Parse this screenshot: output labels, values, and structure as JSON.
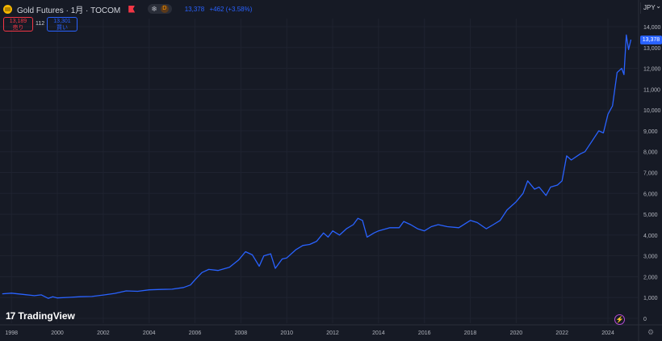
{
  "header": {
    "symbol_title": "Gold Futures · 1月 · TOCOM",
    "badge_d": "D",
    "price": "13,378",
    "change": "+462 (+3.58%)"
  },
  "trade": {
    "sell_price": "13,189",
    "sell_label": "売り",
    "spread": "112",
    "buy_price": "13,301",
    "buy_label": "買い"
  },
  "currency": "JPY",
  "last_price_tag": "13,378",
  "brand": {
    "logo": "17",
    "name": "TradingView"
  },
  "colors": {
    "background": "#161a25",
    "line": "#2962ff",
    "sell": "#f23645",
    "buy": "#2962ff",
    "grid": "#1f2330"
  },
  "icons": [
    "gold-symbol-icon",
    "flag-icon",
    "snowflake-icon",
    "bolt-icon",
    "gear-icon"
  ],
  "chart_data": {
    "type": "line",
    "title": "",
    "xlabel": "",
    "ylabel": "",
    "x_ticks": [
      "1998",
      "2000",
      "2002",
      "2004",
      "2006",
      "2008",
      "2010",
      "2012",
      "2014",
      "2016",
      "2018",
      "2020",
      "2022",
      "2024"
    ],
    "y_ticks": [
      "0",
      "1,000",
      "2,000",
      "3,000",
      "4,000",
      "5,000",
      "6,000",
      "7,000",
      "8,000",
      "9,000",
      "10,000",
      "11,000",
      "12,000",
      "13,000",
      "14,000"
    ],
    "ylim": [
      0,
      14000
    ],
    "xlim": [
      1997.5,
      2025.3
    ],
    "grid": true,
    "series": [
      {
        "color": "#2962ff",
        "points": [
          [
            1997.6,
            1180
          ],
          [
            1998.0,
            1210
          ],
          [
            1998.5,
            1150
          ],
          [
            1999.0,
            1090
          ],
          [
            1999.3,
            1130
          ],
          [
            1999.6,
            960
          ],
          [
            1999.8,
            1040
          ],
          [
            2000.0,
            980
          ],
          [
            2000.5,
            1010
          ],
          [
            2001.0,
            1040
          ],
          [
            2001.5,
            1050
          ],
          [
            2002.0,
            1120
          ],
          [
            2002.5,
            1200
          ],
          [
            2003.0,
            1320
          ],
          [
            2003.5,
            1300
          ],
          [
            2004.0,
            1370
          ],
          [
            2004.5,
            1390
          ],
          [
            2005.0,
            1400
          ],
          [
            2005.5,
            1480
          ],
          [
            2005.8,
            1600
          ],
          [
            2006.0,
            1850
          ],
          [
            2006.3,
            2200
          ],
          [
            2006.6,
            2350
          ],
          [
            2007.0,
            2300
          ],
          [
            2007.5,
            2450
          ],
          [
            2007.9,
            2800
          ],
          [
            2008.2,
            3200
          ],
          [
            2008.5,
            3050
          ],
          [
            2008.8,
            2500
          ],
          [
            2009.0,
            3000
          ],
          [
            2009.3,
            3100
          ],
          [
            2009.5,
            2400
          ],
          [
            2009.8,
            2850
          ],
          [
            2010.0,
            2900
          ],
          [
            2010.4,
            3300
          ],
          [
            2010.7,
            3500
          ],
          [
            2011.0,
            3550
          ],
          [
            2011.3,
            3700
          ],
          [
            2011.6,
            4100
          ],
          [
            2011.8,
            3900
          ],
          [
            2012.0,
            4200
          ],
          [
            2012.3,
            4000
          ],
          [
            2012.6,
            4300
          ],
          [
            2012.9,
            4500
          ],
          [
            2013.1,
            4800
          ],
          [
            2013.3,
            4700
          ],
          [
            2013.5,
            3900
          ],
          [
            2013.8,
            4100
          ],
          [
            2014.0,
            4200
          ],
          [
            2014.5,
            4350
          ],
          [
            2014.9,
            4350
          ],
          [
            2015.1,
            4650
          ],
          [
            2015.4,
            4500
          ],
          [
            2015.7,
            4300
          ],
          [
            2016.0,
            4200
          ],
          [
            2016.3,
            4400
          ],
          [
            2016.6,
            4500
          ],
          [
            2017.0,
            4400
          ],
          [
            2017.5,
            4350
          ],
          [
            2018.0,
            4700
          ],
          [
            2018.3,
            4600
          ],
          [
            2018.7,
            4300
          ],
          [
            2019.0,
            4500
          ],
          [
            2019.3,
            4700
          ],
          [
            2019.6,
            5200
          ],
          [
            2020.0,
            5600
          ],
          [
            2020.3,
            6000
          ],
          [
            2020.5,
            6600
          ],
          [
            2020.8,
            6200
          ],
          [
            2021.0,
            6300
          ],
          [
            2021.3,
            5900
          ],
          [
            2021.5,
            6300
          ],
          [
            2021.8,
            6400
          ],
          [
            2022.0,
            6600
          ],
          [
            2022.2,
            7800
          ],
          [
            2022.4,
            7600
          ],
          [
            2022.8,
            7900
          ],
          [
            2023.0,
            8000
          ],
          [
            2023.3,
            8500
          ],
          [
            2023.6,
            9000
          ],
          [
            2023.8,
            8900
          ],
          [
            2024.0,
            9800
          ],
          [
            2024.2,
            10200
          ],
          [
            2024.4,
            11800
          ],
          [
            2024.6,
            12000
          ],
          [
            2024.7,
            11700
          ],
          [
            2024.8,
            13600
          ],
          [
            2024.9,
            12900
          ],
          [
            2025.0,
            13378
          ]
        ]
      }
    ]
  }
}
